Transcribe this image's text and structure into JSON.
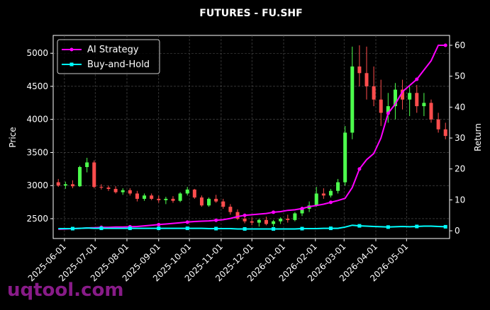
{
  "chart_data": {
    "type": "candlestick",
    "title": "FUTURES - FU.SHF",
    "watermark": "uqtool.com",
    "ylabel": "Price",
    "y2label": "Return",
    "x": [
      "2025-05-26",
      "2025-06-02",
      "2025-06-09",
      "2025-06-16",
      "2025-06-23",
      "2025-06-30",
      "2025-07-07",
      "2025-07-14",
      "2025-07-21",
      "2025-07-28",
      "2025-08-04",
      "2025-08-11",
      "2025-08-18",
      "2025-08-25",
      "2025-09-01",
      "2025-09-08",
      "2025-09-15",
      "2025-09-22",
      "2025-09-29",
      "2025-10-06",
      "2025-10-13",
      "2025-10-20",
      "2025-10-27",
      "2025-11-03",
      "2025-11-10",
      "2025-11-17",
      "2025-11-24",
      "2025-12-01",
      "2025-12-08",
      "2025-12-15",
      "2025-12-22",
      "2025-12-29",
      "2026-01-05",
      "2026-01-12",
      "2026-01-19",
      "2026-01-26",
      "2026-02-02",
      "2026-02-09",
      "2026-02-16",
      "2026-02-23",
      "2026-03-02",
      "2026-03-09",
      "2026-03-16",
      "2026-03-23",
      "2026-03-30",
      "2026-04-06",
      "2026-04-13",
      "2026-04-20",
      "2026-04-27",
      "2026-05-04",
      "2026-05-11",
      "2026-05-18",
      "2026-05-25",
      "2026-06-01",
      "2026-06-08"
    ],
    "candles": {
      "open": [
        3050,
        3000,
        3020,
        2990,
        3280,
        3350,
        2980,
        2970,
        2950,
        2900,
        2930,
        2880,
        2800,
        2850,
        2800,
        2780,
        2800,
        2770,
        2880,
        2940,
        2820,
        2700,
        2800,
        2760,
        2680,
        2600,
        2500,
        2460,
        2440,
        2480,
        2420,
        2460,
        2500,
        2480,
        2580,
        2650,
        2700,
        2880,
        2850,
        2920,
        3050,
        3800,
        4800,
        4700,
        4500,
        4300,
        4100,
        4200,
        4450,
        4300,
        4400,
        4200,
        4250,
        4000,
        3850
      ],
      "high": [
        3100,
        3060,
        3080,
        3300,
        3420,
        3380,
        3020,
        3000,
        2990,
        2960,
        2960,
        2920,
        2880,
        2880,
        2850,
        2830,
        2840,
        2900,
        2980,
        2950,
        2850,
        2820,
        2860,
        2800,
        2720,
        2640,
        2560,
        2520,
        2500,
        2530,
        2480,
        2520,
        2560,
        2600,
        2680,
        2760,
        2980,
        2960,
        2950,
        3100,
        3900,
        5100,
        5120,
        5100,
        4800,
        4600,
        4400,
        4550,
        4600,
        4500,
        4520,
        4400,
        4300,
        4100,
        3950
      ],
      "low": [
        2980,
        2950,
        2960,
        2980,
        3200,
        2960,
        2940,
        2920,
        2880,
        2860,
        2850,
        2760,
        2770,
        2780,
        2740,
        2720,
        2740,
        2750,
        2850,
        2800,
        2680,
        2680,
        2740,
        2650,
        2560,
        2480,
        2430,
        2400,
        2380,
        2400,
        2380,
        2420,
        2440,
        2460,
        2540,
        2600,
        2680,
        2800,
        2820,
        2880,
        3000,
        3700,
        4500,
        4300,
        4200,
        3900,
        3950,
        4000,
        4150,
        4050,
        4100,
        4050,
        3950,
        3800,
        3700
      ],
      "close": [
        3000,
        3020,
        2990,
        3280,
        3350,
        2980,
        2970,
        2950,
        2900,
        2930,
        2880,
        2800,
        2850,
        2800,
        2780,
        2800,
        2770,
        2880,
        2940,
        2820,
        2700,
        2800,
        2760,
        2680,
        2600,
        2500,
        2460,
        2440,
        2480,
        2420,
        2460,
        2500,
        2480,
        2580,
        2650,
        2700,
        2880,
        2850,
        2920,
        3050,
        3800,
        4800,
        4700,
        4500,
        4300,
        4100,
        4200,
        4450,
        4300,
        4400,
        4200,
        4250,
        4000,
        3850,
        3750
      ],
      "up_color": "#4dff4d",
      "down_color": "#ff4d4d"
    },
    "series": [
      {
        "name": "AI Strategy",
        "color": "#ff00ff",
        "axis": "y2",
        "marker": "circle",
        "values": [
          0.5,
          0.6,
          0.7,
          0.8,
          0.9,
          1.0,
          1.1,
          1.1,
          1.2,
          1.2,
          1.3,
          1.4,
          1.6,
          1.8,
          2.0,
          2.2,
          2.4,
          2.6,
          2.8,
          3.0,
          3.1,
          3.2,
          3.4,
          3.6,
          4.0,
          4.6,
          5.0,
          5.2,
          5.4,
          5.6,
          6.0,
          6.2,
          6.6,
          6.8,
          7.2,
          7.8,
          8.2,
          8.6,
          9.2,
          9.8,
          10.5,
          14,
          20,
          23,
          25,
          30,
          38,
          41,
          45,
          47,
          49,
          52,
          55,
          60,
          60
        ]
      },
      {
        "name": "Buy-and-Hold",
        "color": "#00ffff",
        "axis": "y2",
        "marker": "square",
        "values": [
          0.7,
          0.7,
          0.7,
          0.8,
          0.9,
          0.8,
          0.8,
          0.8,
          0.8,
          0.8,
          0.8,
          0.8,
          0.8,
          0.8,
          0.8,
          0.8,
          0.8,
          0.8,
          0.8,
          0.8,
          0.8,
          0.7,
          0.7,
          0.7,
          0.7,
          0.6,
          0.6,
          0.6,
          0.6,
          0.6,
          0.6,
          0.6,
          0.6,
          0.6,
          0.7,
          0.7,
          0.7,
          0.8,
          0.8,
          0.8,
          1.2,
          1.8,
          1.6,
          1.5,
          1.4,
          1.3,
          1.2,
          1.3,
          1.4,
          1.3,
          1.4,
          1.5,
          1.5,
          1.4,
          1.3
        ]
      }
    ],
    "xlim": [
      "2025-05-21",
      "2026-06-12"
    ],
    "xticks": [
      "2025-06-01",
      "2025-07-01",
      "2025-08-01",
      "2025-09-01",
      "2025-10-01",
      "2025-11-01",
      "2025-12-01",
      "2026-01-01",
      "2026-02-01",
      "2026-03-01",
      "2026-04-01",
      "2026-05-01"
    ],
    "ylim": [
      2200,
      5270
    ],
    "yticks": [
      2500,
      3000,
      3500,
      4000,
      4500,
      5000
    ],
    "y2lim": [
      -2.5,
      63.2
    ],
    "y2ticks": [
      0,
      10,
      20,
      30,
      40,
      50,
      60
    ],
    "grid": true,
    "legend": "upper left"
  }
}
